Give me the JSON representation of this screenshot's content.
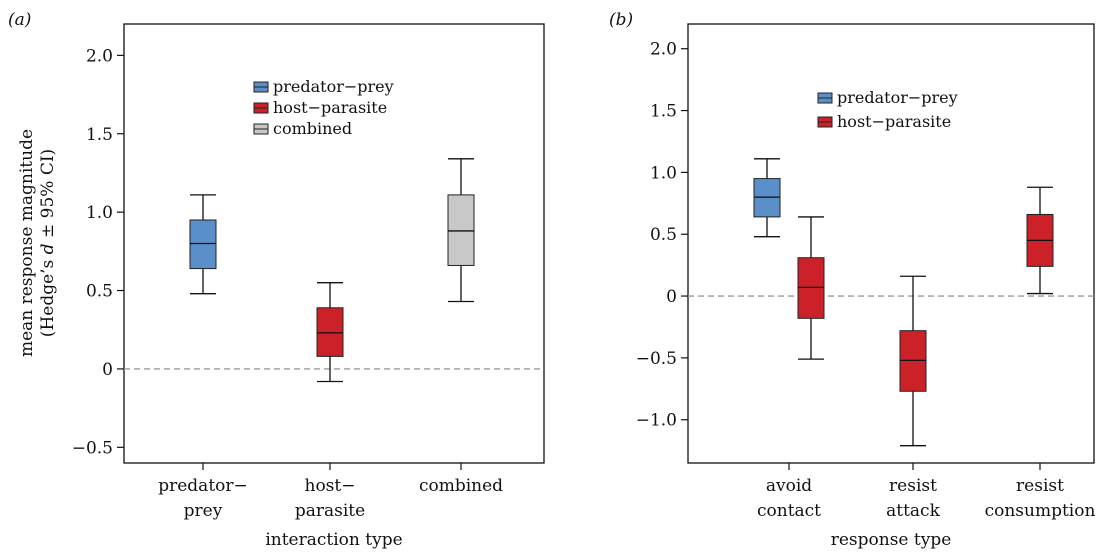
{
  "colors": {
    "predator_prey": "#5b8fc9",
    "host_parasite": "#cc2128",
    "combined": "#c8c8c8",
    "zero_line": "#999999"
  },
  "chart_data": [
    {
      "type": "box",
      "panel_label": "(a)",
      "xlabel": "interaction type",
      "ylabel_line1": "mean response magnitude",
      "ylabel_line2": "(Hedge’s d ± 95% CI)",
      "ylim": [
        -0.6,
        2.2
      ],
      "yticks": [
        {
          "value": -0.5,
          "label": "−0.5"
        },
        {
          "value": 0,
          "label": "0"
        },
        {
          "value": 0.5,
          "label": "0.5"
        },
        {
          "value": 1.0,
          "label": "1.0"
        },
        {
          "value": 1.5,
          "label": "1.5"
        },
        {
          "value": 2.0,
          "label": "2.0"
        }
      ],
      "zero_line": true,
      "legend": [
        {
          "name": "predator−prey",
          "color_key": "predator_prey"
        },
        {
          "name": "host−parasite",
          "color_key": "host_parasite"
        },
        {
          "name": "combined",
          "color_key": "combined"
        }
      ],
      "categories": [
        {
          "label_lines": [
            "predator−",
            "prey"
          ]
        },
        {
          "label_lines": [
            "host−",
            "parasite"
          ]
        },
        {
          "label_lines": [
            "combined"
          ]
        }
      ],
      "boxes": [
        {
          "category": 0,
          "series": "predator−prey",
          "color_key": "predator_prey",
          "whisker_low": 0.48,
          "q1": 0.64,
          "median": 0.8,
          "q3": 0.95,
          "whisker_high": 1.11
        },
        {
          "category": 1,
          "series": "host−parasite",
          "color_key": "host_parasite",
          "whisker_low": -0.08,
          "q1": 0.08,
          "median": 0.23,
          "q3": 0.39,
          "whisker_high": 0.55
        },
        {
          "category": 2,
          "series": "combined",
          "color_key": "combined",
          "whisker_low": 0.43,
          "q1": 0.66,
          "median": 0.88,
          "q3": 1.11,
          "whisker_high": 1.34
        }
      ]
    },
    {
      "type": "box",
      "panel_label": "(b)",
      "xlabel": "response type",
      "ylim": [
        -1.35,
        2.2
      ],
      "yticks": [
        {
          "value": -1.0,
          "label": "−1.0"
        },
        {
          "value": -0.5,
          "label": "−0.5"
        },
        {
          "value": 0,
          "label": "0"
        },
        {
          "value": 0.5,
          "label": "0.5"
        },
        {
          "value": 1.0,
          "label": "1.0"
        },
        {
          "value": 1.5,
          "label": "1.5"
        },
        {
          "value": 2.0,
          "label": "2.0"
        }
      ],
      "zero_line": true,
      "legend": [
        {
          "name": "predator−prey",
          "color_key": "predator_prey"
        },
        {
          "name": "host−parasite",
          "color_key": "host_parasite"
        }
      ],
      "categories": [
        {
          "label_lines": [
            "avoid",
            "contact"
          ]
        },
        {
          "label_lines": [
            "resist",
            "attack"
          ]
        },
        {
          "label_lines": [
            "resist",
            "consumption"
          ]
        }
      ],
      "boxes": [
        {
          "category": 0,
          "series": "predator−prey",
          "color_key": "predator_prey",
          "whisker_low": 0.48,
          "q1": 0.64,
          "median": 0.8,
          "q3": 0.95,
          "whisker_high": 1.11
        },
        {
          "category": 0,
          "series": "host−parasite",
          "color_key": "host_parasite",
          "whisker_low": -0.51,
          "q1": -0.18,
          "median": 0.07,
          "q3": 0.31,
          "whisker_high": 0.64
        },
        {
          "category": 1,
          "series": "host−parasite",
          "color_key": "host_parasite",
          "whisker_low": -1.21,
          "q1": -0.77,
          "median": -0.52,
          "q3": -0.28,
          "whisker_high": 0.16
        },
        {
          "category": 2,
          "series": "host−parasite",
          "color_key": "host_parasite",
          "whisker_low": 0.02,
          "q1": 0.24,
          "median": 0.45,
          "q3": 0.66,
          "whisker_high": 0.88
        }
      ]
    }
  ]
}
